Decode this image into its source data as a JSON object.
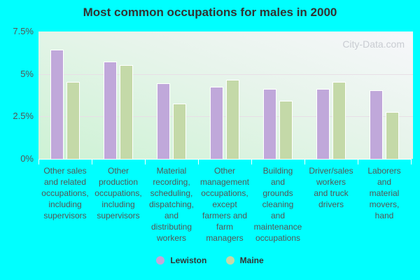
{
  "chart_data": {
    "type": "bar",
    "title": "Most common occupations for males in 2000",
    "xlabel": "",
    "ylabel": "",
    "ylim": [
      0,
      7.5
    ],
    "yticks": [
      "0%",
      "2.5%",
      "5%",
      "7.5%"
    ],
    "grid": true,
    "legend_position": "bottom",
    "watermark": "City-Data.com",
    "categories": [
      "Other sales\nand related\noccupations,\nincluding\nsupervisors",
      "Other\nproduction\noccupations,\nincluding\nsupervisors",
      "Material\nrecording,\nscheduling,\ndispatching,\nand\ndistributing\nworkers",
      "Other\nmanagement\noccupations,\nexcept\nfarmers and\nfarm\nmanagers",
      "Building\nand\ngrounds\ncleaning\nand\nmaintenance\noccupations",
      "Driver/sales\nworkers\nand truck\ndrivers",
      "Laborers\nand\nmaterial\nmovers,\nhand"
    ],
    "series": [
      {
        "name": "Lewiston",
        "color": "#c0a8da",
        "values": [
          6.4,
          5.7,
          4.4,
          4.2,
          4.1,
          4.1,
          4.0
        ]
      },
      {
        "name": "Maine",
        "color": "#c4d9a8",
        "values": [
          4.5,
          5.5,
          3.2,
          4.6,
          3.4,
          4.5,
          2.7
        ]
      }
    ]
  }
}
